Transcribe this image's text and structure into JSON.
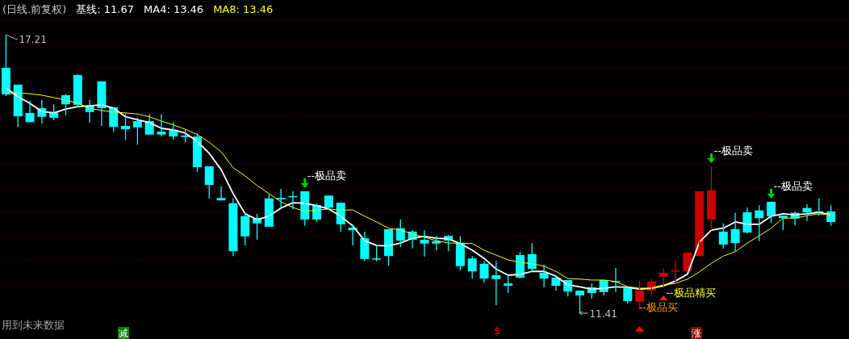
{
  "chart_data": {
    "type": "candlestick",
    "title": "(日线.前复权)",
    "categories": [
      null,
      null,
      null,
      null,
      null,
      null,
      null,
      null,
      null,
      null,
      null,
      null,
      null,
      null,
      null,
      null,
      null,
      null,
      null,
      null,
      null,
      null,
      null,
      null,
      null,
      null,
      null,
      null,
      null,
      null,
      null,
      null,
      null,
      null,
      null,
      null,
      null,
      null,
      null,
      null,
      null,
      null,
      null,
      null,
      null,
      null,
      null,
      null,
      null,
      null,
      null,
      null,
      null,
      null,
      null,
      null,
      null,
      null,
      null,
      null,
      null,
      null,
      null,
      null,
      null,
      null,
      null,
      null,
      null,
      null
    ],
    "ohlc": [
      [
        16.52,
        17.21,
        15.93,
        15.97
      ],
      [
        16.17,
        16.17,
        15.29,
        15.51
      ],
      [
        15.58,
        15.83,
        15.39,
        15.39
      ],
      [
        15.68,
        15.85,
        15.36,
        15.5
      ],
      [
        15.6,
        15.76,
        15.43,
        15.48
      ],
      [
        15.95,
        15.97,
        15.53,
        15.76
      ],
      [
        16.37,
        16.39,
        15.7,
        15.75
      ],
      [
        15.73,
        15.85,
        15.38,
        15.6
      ],
      [
        16.24,
        16.24,
        15.31,
        15.68
      ],
      [
        15.7,
        15.7,
        15.19,
        15.29
      ],
      [
        15.31,
        15.58,
        15.02,
        15.24
      ],
      [
        15.41,
        15.48,
        14.92,
        15.28
      ],
      [
        15.41,
        15.56,
        15.13,
        15.13
      ],
      [
        15.19,
        15.56,
        15.09,
        15.13
      ],
      [
        15.23,
        15.39,
        15.02,
        15.09
      ],
      [
        15.11,
        15.24,
        14.97,
        15.08
      ],
      [
        15.09,
        15.16,
        14.35,
        14.45
      ],
      [
        14.47,
        14.47,
        13.8,
        14.08
      ],
      [
        13.81,
        14.05,
        13.76,
        13.76
      ],
      [
        13.7,
        13.8,
        12.6,
        12.7
      ],
      [
        13.43,
        13.51,
        12.82,
        13.01
      ],
      [
        13.39,
        13.48,
        12.94,
        13.28
      ],
      [
        13.8,
        13.88,
        13.21,
        13.21
      ],
      [
        13.81,
        14.0,
        13.61,
        13.78
      ],
      [
        13.85,
        13.95,
        13.58,
        13.83
      ],
      [
        13.95,
        13.95,
        13.23,
        13.36
      ],
      [
        13.66,
        13.7,
        13.31,
        13.36
      ],
      [
        13.86,
        13.86,
        13.56,
        13.61
      ],
      [
        13.71,
        13.71,
        13.11,
        13.26
      ],
      [
        13.19,
        13.26,
        12.82,
        13.14
      ],
      [
        12.97,
        13.11,
        12.5,
        12.54
      ],
      [
        12.55,
        12.81,
        12.49,
        12.54
      ],
      [
        13.16,
        13.16,
        12.4,
        12.6
      ],
      [
        13.18,
        13.36,
        12.79,
        12.92
      ],
      [
        13.11,
        13.14,
        12.76,
        12.94
      ],
      [
        12.94,
        13.14,
        12.59,
        12.86
      ],
      [
        12.91,
        13.02,
        12.72,
        12.86
      ],
      [
        13.02,
        13.04,
        12.7,
        12.92
      ],
      [
        12.87,
        13.01,
        12.3,
        12.39
      ],
      [
        12.55,
        12.6,
        12.13,
        12.28
      ],
      [
        12.44,
        12.5,
        12.05,
        12.13
      ],
      [
        12.2,
        12.49,
        11.58,
        12.12
      ],
      [
        12.03,
        12.2,
        11.83,
        11.98
      ],
      [
        12.62,
        12.69,
        12.13,
        12.15
      ],
      [
        12.64,
        12.87,
        12.3,
        12.33
      ],
      [
        12.25,
        12.42,
        11.95,
        12.13
      ],
      [
        12.15,
        12.2,
        11.88,
        11.98
      ],
      [
        12.1,
        12.1,
        11.76,
        11.86
      ],
      [
        11.88,
        11.88,
        11.41,
        11.78
      ],
      [
        11.95,
        12.03,
        11.71,
        11.83
      ],
      [
        12.1,
        12.1,
        11.78,
        11.85
      ],
      [
        12.08,
        12.35,
        11.85,
        12.07
      ],
      [
        11.93,
        11.93,
        11.61,
        11.66
      ],
      [
        11.65,
        12.08,
        11.49,
        11.88
      ],
      [
        11.88,
        12.13,
        11.78,
        12.07
      ],
      [
        12.17,
        12.35,
        11.93,
        12.25
      ],
      [
        12.28,
        12.5,
        12.03,
        12.3
      ],
      [
        12.28,
        12.69,
        12.28,
        12.67
      ],
      [
        12.6,
        13.95,
        12.6,
        13.95
      ],
      [
        13.36,
        14.47,
        13.14,
        13.97
      ],
      [
        13.11,
        13.28,
        12.76,
        12.84
      ],
      [
        13.16,
        13.5,
        12.69,
        12.87
      ],
      [
        13.51,
        13.61,
        13.07,
        13.09
      ],
      [
        13.55,
        13.66,
        12.91,
        13.39
      ],
      [
        13.73,
        13.73,
        13.29,
        13.43
      ],
      [
        13.44,
        13.44,
        13.14,
        13.39
      ],
      [
        13.5,
        13.53,
        13.24,
        13.38
      ],
      [
        13.6,
        13.68,
        13.33,
        13.51
      ],
      [
        13.53,
        13.8,
        13.44,
        13.51
      ],
      [
        13.53,
        13.66,
        13.23,
        13.31
      ]
    ],
    "colors": [
      "#00ffff",
      "#00ffff",
      "#00ffff",
      "#00ffff",
      "#00ffff",
      "#00ffff",
      "#00ffff",
      "#00ffff",
      "#00ffff",
      "#00ffff",
      "#00ffff",
      "#00ffff",
      "#00ffff",
      "#00ffff",
      "#00ffff",
      "#00ffff",
      "#00ffff",
      "#00ffff",
      "#00ffff",
      "#00ffff",
      "#00ffff",
      "#00ffff",
      "#00ffff",
      "#00ffff",
      "#00ffff",
      "#00ffff",
      "#00ffff",
      "#00ffff",
      "#00ffff",
      "#00ffff",
      "#00ffff",
      "#00ffff",
      "#00ffff",
      "#00ffff",
      "#00ffff",
      "#00ffff",
      "#00ffff",
      "#00ffff",
      "#00ffff",
      "#00ffff",
      "#00ffff",
      "#00ffff",
      "#00ffff",
      "#00ffff",
      "#00ffff",
      "#00ffff",
      "#00ffff",
      "#00ffff",
      "#00ffff",
      "#00ffff",
      "#00ffff",
      "#00ffff",
      "#00ffff",
      "#cc0000",
      "#cc0000",
      "#cc0000",
      "#cc0000",
      "#cc0000",
      "#cc0000",
      "#cc0000",
      "#00ffff",
      "#00ffff",
      "#00ffff",
      "#00ffff",
      "#00ffff",
      "#00ffff",
      "#00ffff",
      "#00ffff",
      "#00ffff",
      "#00ffff"
    ],
    "series": [
      {
        "type": "line",
        "name": "MA4: 13.46",
        "color": "#ffffff",
        "values": [
          16.1,
          15.92,
          15.78,
          15.61,
          15.58,
          15.66,
          15.71,
          15.73,
          15.75,
          15.68,
          15.5,
          15.44,
          15.38,
          15.26,
          15.23,
          15.16,
          14.99,
          14.74,
          14.4,
          13.9,
          13.48,
          13.36,
          13.43,
          13.6,
          13.71,
          13.7,
          13.65,
          13.58,
          13.43,
          13.23,
          12.92,
          12.82,
          12.81,
          12.87,
          12.97,
          13.01,
          12.97,
          12.96,
          12.86,
          12.72,
          12.55,
          12.33,
          12.2,
          12.22,
          12.28,
          12.28,
          12.18,
          12.0,
          11.96,
          11.91,
          11.93,
          11.96,
          11.95,
          11.91,
          11.93,
          11.98,
          12.08,
          12.22,
          12.89,
          13.14,
          13.18,
          13.31,
          13.26,
          13.26,
          13.43,
          13.48,
          13.46,
          13.48,
          13.51,
          13.46
        ]
      },
      {
        "type": "line",
        "name": "MA8: 13.46",
        "color": "#ffff00",
        "values": [
          15.97,
          16.0,
          15.98,
          15.95,
          15.9,
          15.85,
          15.78,
          15.68,
          15.63,
          15.6,
          15.58,
          15.56,
          15.5,
          15.41,
          15.33,
          15.24,
          15.13,
          14.97,
          14.77,
          14.44,
          14.27,
          14.07,
          13.9,
          13.73,
          13.61,
          13.53,
          13.56,
          13.58,
          13.56,
          13.56,
          13.43,
          13.31,
          13.18,
          13.14,
          13.06,
          12.99,
          12.92,
          12.87,
          12.87,
          12.86,
          12.72,
          12.62,
          12.52,
          12.47,
          12.44,
          12.39,
          12.28,
          12.13,
          12.12,
          12.1,
          12.1,
          12.07,
          11.96,
          11.93,
          11.93,
          12.0,
          12.03,
          12.12,
          12.27,
          12.45,
          12.6,
          12.69,
          12.87,
          13.02,
          13.18,
          13.39,
          13.39,
          13.44,
          13.48,
          13.46
        ]
      }
    ],
    "yticks": [
      {
        "value": 17.51,
        "label": null
      },
      {
        "value": 17.03,
        "label": null
      },
      {
        "value": 16.52,
        "label": null
      },
      {
        "value": 16.02,
        "label": null
      },
      {
        "value": 15.51,
        "label": null
      },
      {
        "value": 15.01,
        "label": null
      },
      {
        "value": 14.52,
        "label": null
      },
      {
        "value": 14.02,
        "label": null
      },
      {
        "value": 13.51,
        "label": null
      },
      {
        "value": 13.01,
        "label": null
      },
      {
        "value": 12.5,
        "label": null
      },
      {
        "value": 12.0,
        "label": null
      },
      {
        "value": 11.49,
        "label": null
      }
    ],
    "grid": "y",
    "legend": "top left",
    "annotations": [
      "17.21",
      "11.41",
      "--极品卖",
      "--极品卖",
      "--极品卖",
      "--极品精买",
      "--极品买",
      "用到未来数据",
      "减",
      "$",
      "涨",
      "基线: 11.67"
    ]
  }
}
